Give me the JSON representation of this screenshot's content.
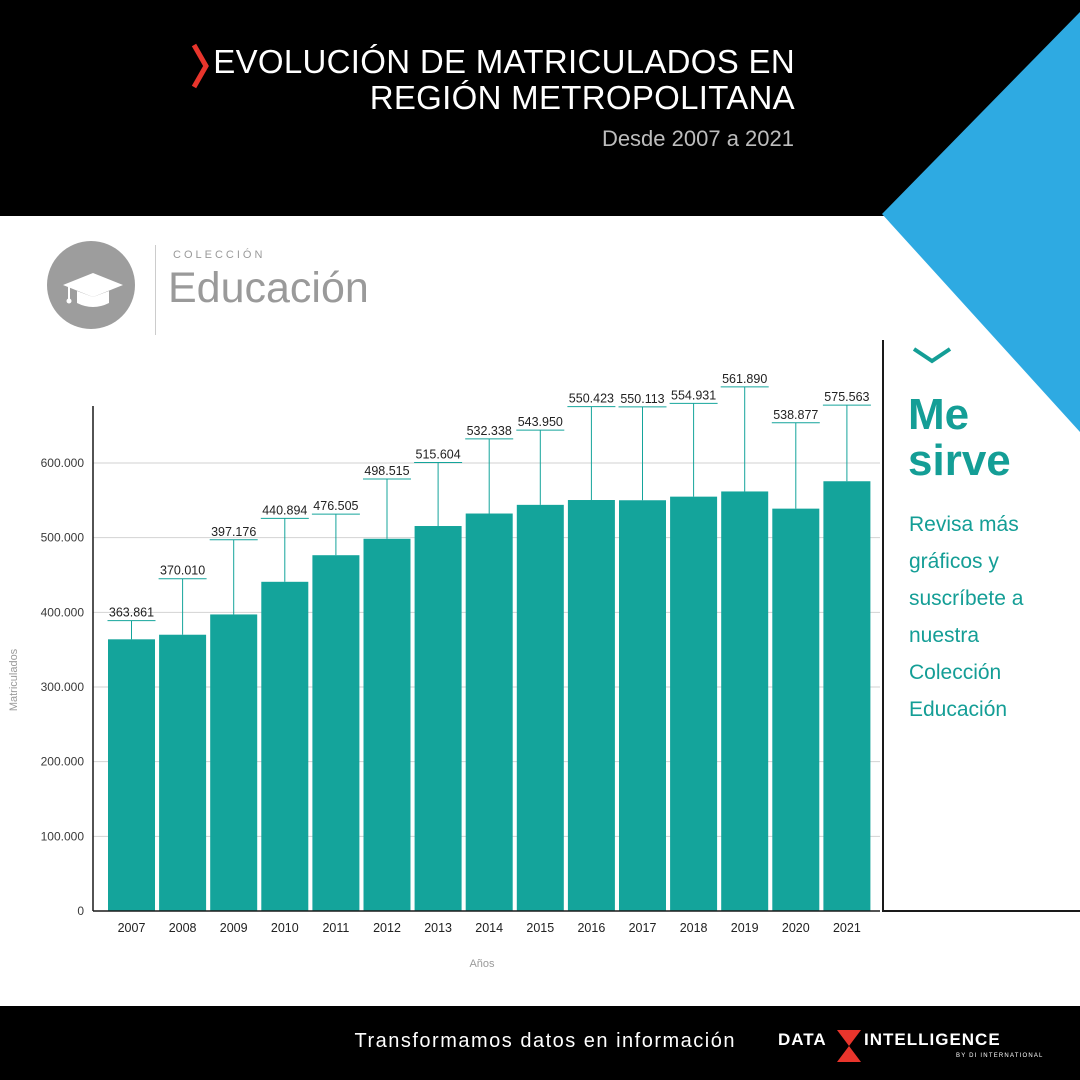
{
  "header": {
    "title_line1": "EVOLUCIÓN DE MATRICULADOS EN",
    "title_line2": "REGIÓN METROPOLITANA",
    "subtitle": "Desde 2007 a 2021"
  },
  "collection": {
    "label_small": "COLECCIÓN",
    "label_big": "Educación",
    "icon": "graduation-cap-icon"
  },
  "sidebar": {
    "me": "Me",
    "sirve": "sirve",
    "cta_lines": [
      "Revisa más",
      "gráficos y",
      "suscríbete a",
      "nuestra",
      "Colección",
      "Educación"
    ]
  },
  "footer": {
    "tagline": "Transformamos datos en información",
    "logo_left": "DATA",
    "logo_right": "INTELLIGENCE",
    "logo_sub": "BY DI INTERNATIONAL"
  },
  "colors": {
    "bar": "#14a49b",
    "accent_blue": "#2eaae2",
    "accent_red": "#e8352c",
    "text_teal": "#149e96",
    "header_bg": "#000000"
  },
  "chart_data": {
    "type": "bar",
    "title": "",
    "xlabel": "Años",
    "ylabel": "Matriculados",
    "ylim": [
      0,
      600000
    ],
    "yticks": [
      0,
      100000,
      200000,
      300000,
      400000,
      500000,
      600000
    ],
    "ytick_labels": [
      "0",
      "100.000",
      "200.000",
      "300.000",
      "400.000",
      "500.000",
      "600.000"
    ],
    "grid": true,
    "categories": [
      "2007",
      "2008",
      "2009",
      "2010",
      "2011",
      "2012",
      "2013",
      "2014",
      "2015",
      "2016",
      "2017",
      "2018",
      "2019",
      "2020",
      "2021"
    ],
    "values": [
      363861,
      370010,
      397176,
      440894,
      476505,
      498515,
      515604,
      532338,
      543950,
      550423,
      550113,
      554931,
      561890,
      538877,
      575563
    ],
    "value_labels": [
      "363.861",
      "370.010",
      "397.176",
      "440.894",
      "476.505",
      "498.515",
      "515.604",
      "532.338",
      "543.950",
      "550.423",
      "550.113",
      "554.931",
      "561.890",
      "538.877",
      "575.563"
    ],
    "label_raise": [
      25000,
      75000,
      100000,
      85000,
      55000,
      80000,
      85000,
      100000,
      100000,
      125000,
      125000,
      125000,
      140000,
      115000,
      102000
    ]
  }
}
